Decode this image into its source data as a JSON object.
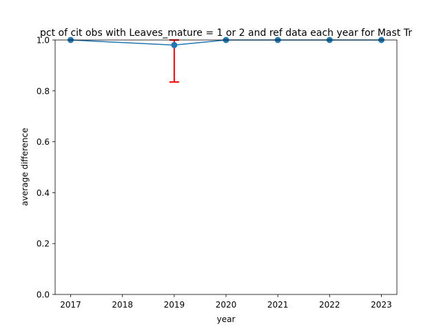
{
  "chart_data": {
    "type": "line",
    "title": "pct of cit obs with Leaves_mature = 1 or 2 and ref data each year for Mast Tr",
    "xlabel": "year",
    "ylabel": "average difference",
    "xlim": [
      2016.7,
      2023.3
    ],
    "ylim": [
      0.0,
      1.0
    ],
    "xticks": [
      2017,
      2018,
      2019,
      2020,
      2021,
      2022,
      2023
    ],
    "xtick_labels": [
      "2017",
      "2018",
      "2019",
      "2020",
      "2021",
      "2022",
      "2023"
    ],
    "yticks": [
      0.0,
      0.2,
      0.4,
      0.6,
      0.8,
      1.0
    ],
    "ytick_labels": [
      "0.0",
      "0.2",
      "0.4",
      "0.6",
      "0.8",
      "1.0"
    ],
    "grid": false,
    "series": [
      {
        "x": [
          2017,
          2019,
          2020,
          2021,
          2022,
          2023
        ],
        "y": [
          1.0,
          0.98,
          1.0,
          1.0,
          1.0,
          1.0
        ],
        "yerr_lower": [
          0.0,
          0.145,
          0.0,
          0.0,
          0.0,
          0.0
        ],
        "yerr_upper": [
          0.0,
          0.02,
          0.0,
          0.0,
          0.0,
          0.0
        ],
        "color": "#1f77b4",
        "errorbar_color": "#ff0000",
        "marker": "circle"
      }
    ]
  }
}
